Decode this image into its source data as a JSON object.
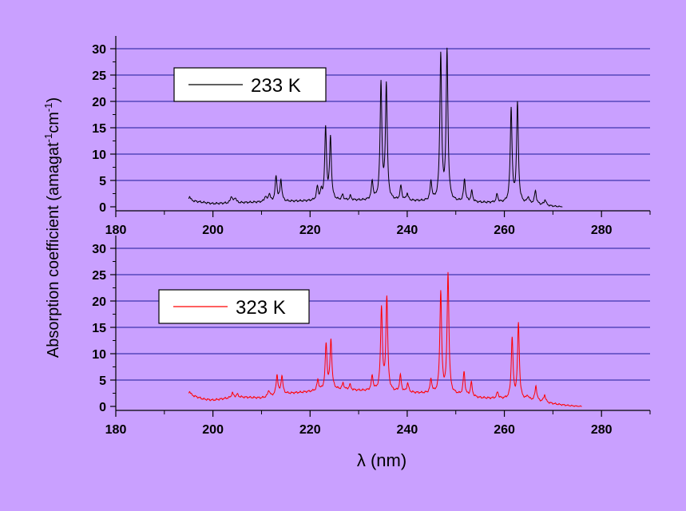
{
  "background": "#c9a0ff",
  "ylabel_main": "Absorption coefficient (amagat",
  "ylabel_sup1": "-1",
  "ylabel_mid": "cm",
  "ylabel_sup2": "-1",
  "ylabel_end": ")",
  "xlabel": "λ (nm)",
  "chart_data": [
    {
      "type": "line",
      "xlim": [
        180,
        290
      ],
      "ylim": [
        0,
        32
      ],
      "xticks": [
        180,
        200,
        220,
        240,
        260,
        280
      ],
      "yticks": [
        0,
        5,
        10,
        15,
        20,
        25,
        30
      ],
      "grid": "horizontal",
      "legend_position": "top-left",
      "series": [
        {
          "name": "233 K",
          "color": "#000000",
          "baseline": [
            [
              195,
              1.2
            ],
            [
              200,
              0.6
            ],
            [
              210,
              0.9
            ],
            [
              220,
              1.1
            ],
            [
              230,
              1.2
            ],
            [
              240,
              1.1
            ],
            [
              250,
              0.9
            ],
            [
              260,
              0.7
            ],
            [
              266,
              0.5
            ],
            [
              270,
              0.15
            ],
            [
              272,
              0.0
            ]
          ],
          "peaks": [
            [
              195.2,
              0.8
            ],
            [
              203.8,
              1.3
            ],
            [
              204.6,
              1.0
            ],
            [
              210.8,
              1.0
            ],
            [
              211.6,
              1.5
            ],
            [
              213.0,
              4.8
            ],
            [
              214.0,
              4.0
            ],
            [
              221.5,
              2.5
            ],
            [
              222.3,
              1.5
            ],
            [
              223.2,
              13.5
            ],
            [
              224.2,
              11.7
            ],
            [
              226.7,
              1.0
            ],
            [
              228.3,
              0.8
            ],
            [
              232.8,
              3.5
            ],
            [
              234.6,
              22.0
            ],
            [
              235.7,
              21.8
            ],
            [
              238.7,
              2.7
            ],
            [
              240.0,
              1.3
            ],
            [
              244.9,
              3.6
            ],
            [
              246.9,
              27.7
            ],
            [
              248.2,
              28.3
            ],
            [
              251.8,
              4.2
            ],
            [
              253.3,
              2.0
            ],
            [
              258.5,
              1.5
            ],
            [
              261.4,
              17.8
            ],
            [
              262.7,
              18.8
            ],
            [
              264.9,
              1.2
            ],
            [
              266.4,
              2.5
            ],
            [
              268.4,
              1.1
            ]
          ]
        },
        {
          "name": "323 K",
          "color": "#ff0000",
          "baseline": [
            [
              195,
              2.3
            ],
            [
              198,
              1.4
            ],
            [
              200,
              1.2
            ],
            [
              205,
              1.8
            ],
            [
              210,
              1.6
            ],
            [
              215,
              2.4
            ],
            [
              220,
              2.8
            ],
            [
              225,
              3.2
            ],
            [
              230,
              3.0
            ],
            [
              240,
              2.6
            ],
            [
              250,
              2.2
            ],
            [
              255,
              1.6
            ],
            [
              260,
              1.4
            ],
            [
              265,
              1.2
            ],
            [
              270,
              0.6
            ],
            [
              275,
              0.05
            ],
            [
              276,
              0.0
            ]
          ],
          "peaks": [
            [
              195.2,
              0.6
            ],
            [
              204.0,
              0.9
            ],
            [
              205.0,
              0.5
            ],
            [
              211.5,
              1.2
            ],
            [
              213.2,
              3.8
            ],
            [
              214.2,
              3.5
            ],
            [
              221.6,
              2.0
            ],
            [
              223.3,
              8.6
            ],
            [
              224.3,
              9.3
            ],
            [
              226.8,
              1.2
            ],
            [
              228.2,
              1.0
            ],
            [
              232.8,
              2.8
            ],
            [
              234.7,
              15.8
            ],
            [
              235.8,
              17.7
            ],
            [
              238.6,
              3.1
            ],
            [
              240.1,
              1.7
            ],
            [
              244.9,
              2.6
            ],
            [
              246.9,
              19.3
            ],
            [
              248.4,
              22.8
            ],
            [
              251.7,
              4.4
            ],
            [
              253.2,
              2.6
            ],
            [
              258.6,
              1.2
            ],
            [
              261.6,
              11.5
            ],
            [
              262.9,
              14.3
            ],
            [
              264.8,
              0.7
            ],
            [
              266.5,
              2.8
            ],
            [
              268.3,
              1.4
            ]
          ]
        }
      ]
    }
  ]
}
